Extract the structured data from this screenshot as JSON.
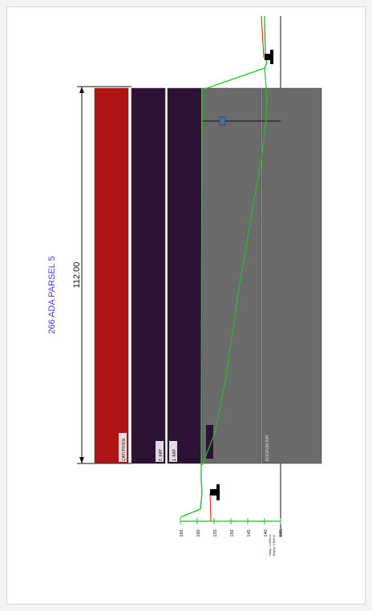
{
  "drawing": {
    "title": "266 ADA PARSEL 5",
    "dimension_label": "112.00",
    "floors": [
      {
        "label": "ÇATI PIYESI",
        "color": "#b01515"
      },
      {
        "label": "2. KAT",
        "color": "#2d1236"
      },
      {
        "label": "1. KAT",
        "color": "#2d1236"
      },
      {
        "label": "",
        "color": "#6b6b6b"
      },
      {
        "label": "BODRUM KAT",
        "color": "#6b6b6b"
      }
    ],
    "inner_box_label": "",
    "marker_label": "",
    "elevation_scale": {
      "ticks": [
        "165",
        "160",
        "155",
        "150",
        "145",
        "140",
        "135"
      ]
    },
    "scale_note_1": "Yatay: 1/1000 m",
    "scale_note_2": "Düşey: 1/500 m",
    "colors": {
      "roof": "#b01515",
      "floor": "#2d1236",
      "basement": "#6b6b6b",
      "terrain": "#22c02a",
      "title": "#4a3ccf"
    }
  }
}
